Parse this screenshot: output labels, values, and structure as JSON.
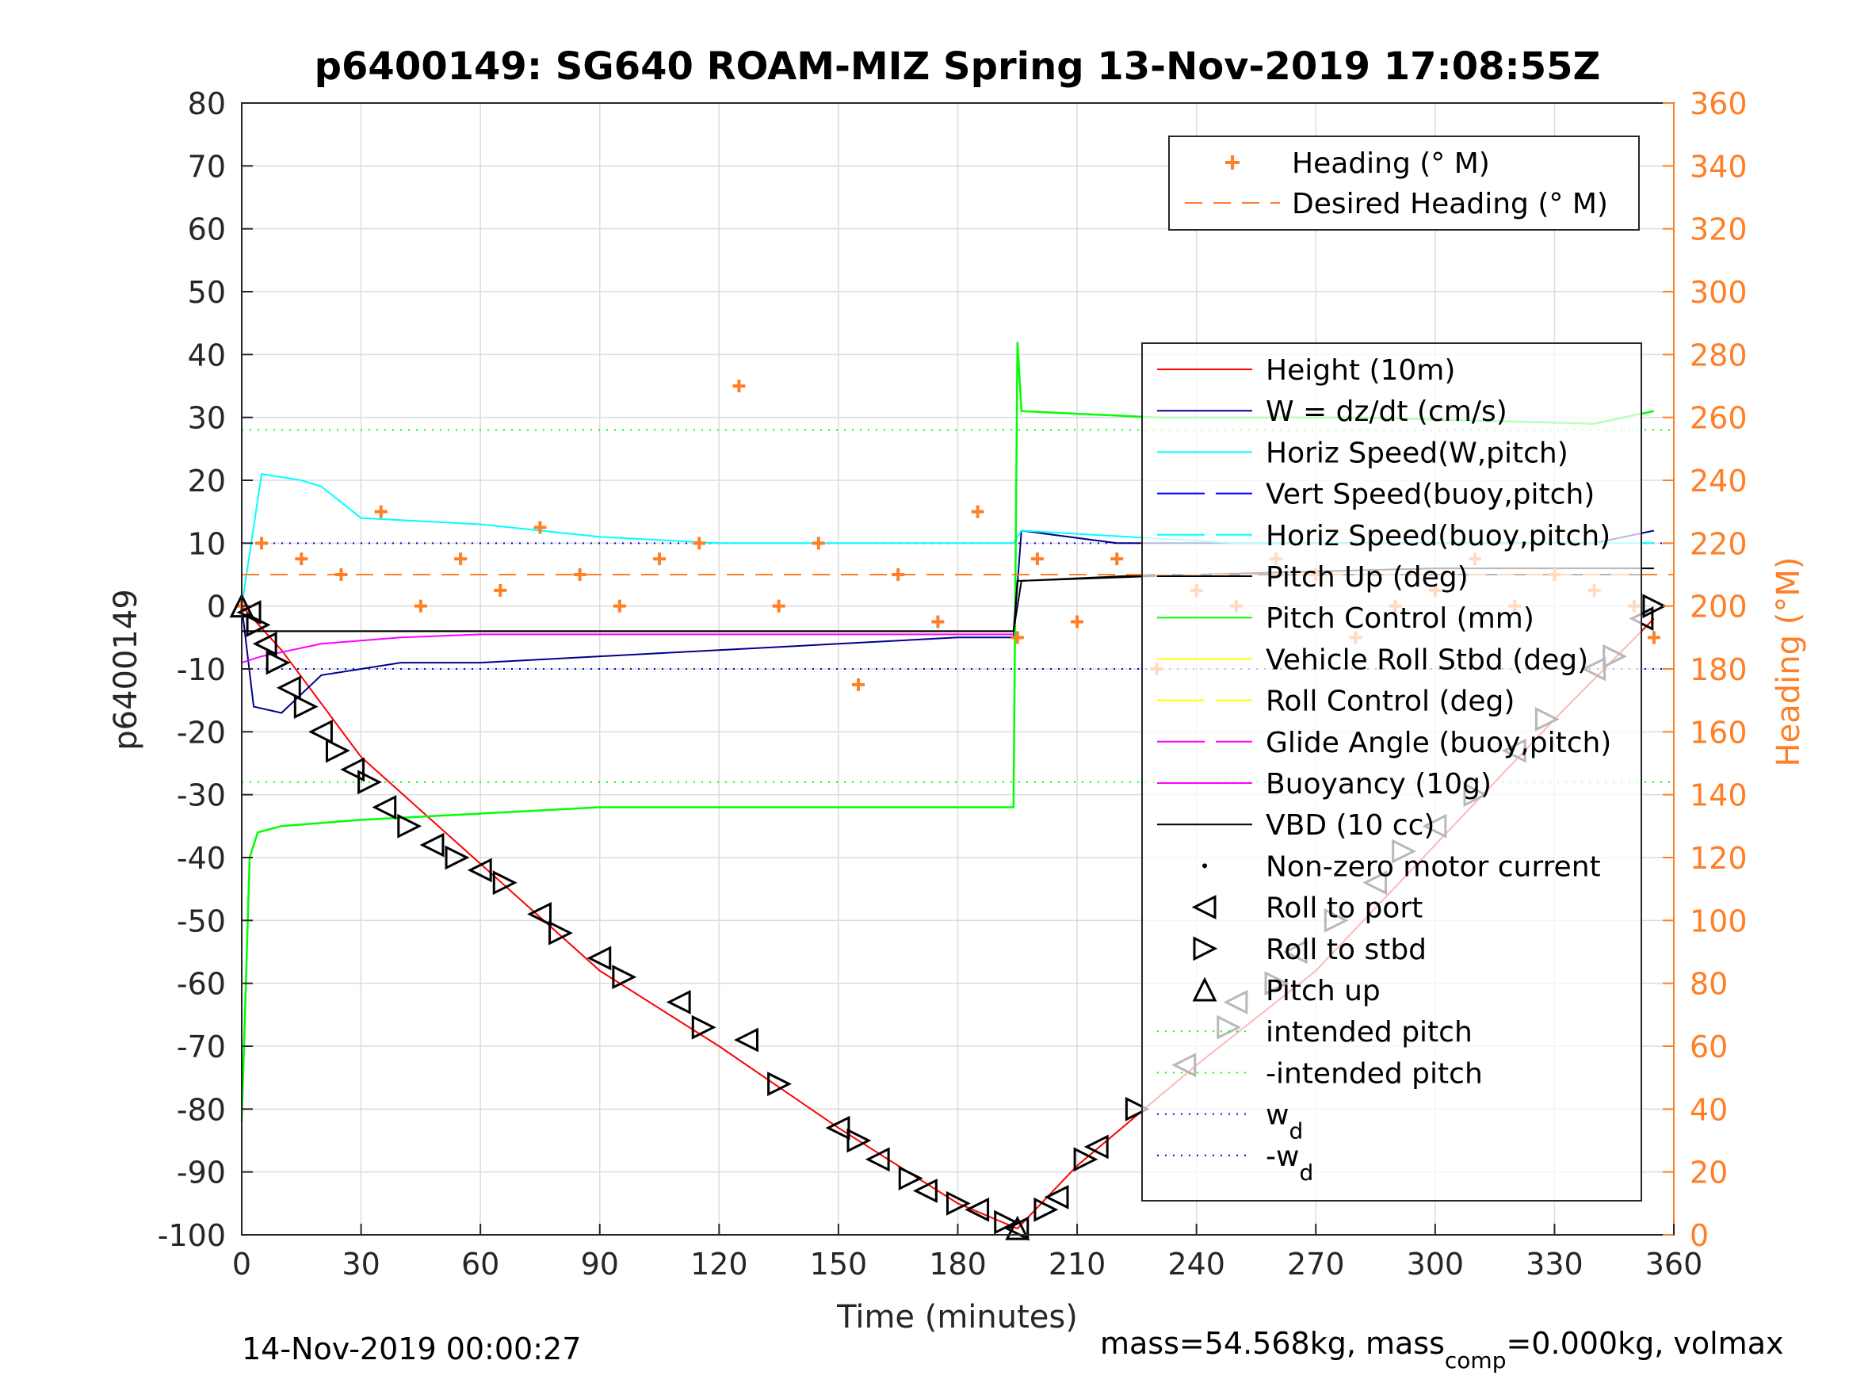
{
  "chart_data": {
    "type": "line",
    "title": "p6400149: SG640 ROAM-MIZ Spring 13-Nov-2019 17:08:55Z",
    "xlabel": "Time (minutes)",
    "ylabel": "p6400149",
    "y2label": "Heading (°M)",
    "xlim": [
      0,
      360
    ],
    "ylim": [
      -100,
      80
    ],
    "y2lim": [
      0,
      360
    ],
    "xticks": [
      0,
      30,
      60,
      90,
      120,
      150,
      180,
      210,
      240,
      270,
      300,
      330,
      360
    ],
    "yticks": [
      80,
      70,
      60,
      50,
      40,
      30,
      20,
      10,
      0,
      -10,
      -20,
      -30,
      -40,
      -50,
      -60,
      -70,
      -80,
      -90,
      -100
    ],
    "y2ticks": [
      360,
      340,
      320,
      300,
      280,
      260,
      240,
      220,
      200,
      180,
      160,
      140,
      120,
      100,
      80,
      60,
      40,
      20,
      0
    ],
    "grid": true,
    "footer_left": "14-Nov-2019 00:00:27",
    "footer_right": {
      "prefix": "mass=54.568kg, mass",
      "sub": "comp",
      "suffix": "=0.000kg, volmax"
    },
    "colors": {
      "accent": "#ff7f27",
      "height": "#ff0000",
      "w": "#00008b",
      "horiz_speed": "#00ffff",
      "vert_speed": "#0000ff",
      "pitch": "#000000",
      "pitch_control": "#00ff00",
      "roll": "#ffff00",
      "glide": "#ff00ff",
      "vbd": "#000000"
    },
    "legend_top": [
      {
        "label": "Heading (° M)",
        "style": "plus",
        "color": "#ff7f27"
      },
      {
        "label": "Desired Heading (° M)",
        "style": "dash",
        "color": "#ff7f27"
      }
    ],
    "legend_main": [
      {
        "label": "Height (10m)",
        "style": "line",
        "color": "#ff0000"
      },
      {
        "label": "W = dz/dt (cm/s)",
        "style": "line",
        "color": "#00008b"
      },
      {
        "label": "Horiz Speed(W,pitch)",
        "style": "line",
        "color": "#00ffff"
      },
      {
        "label": "Vert Speed(buoy,pitch)",
        "style": "dashline",
        "color": "#0000ff"
      },
      {
        "label": "Horiz Speed(buoy,pitch)",
        "style": "dashline",
        "color": "#00ffff"
      },
      {
        "label": "Pitch Up (deg)",
        "style": "line",
        "color": "#000000"
      },
      {
        "label": "Pitch Control (mm)",
        "style": "line",
        "color": "#00ff00"
      },
      {
        "label": "Vehicle Roll Stbd (deg)",
        "style": "line",
        "color": "#ffff00"
      },
      {
        "label": "Roll Control (deg)",
        "style": "dashline",
        "color": "#ffff00"
      },
      {
        "label": "Glide Angle (buoy,pitch)",
        "style": "dashline",
        "color": "#ff00ff"
      },
      {
        "label": "Buoyancy (10g)",
        "style": "line",
        "color": "#ff00ff"
      },
      {
        "label": "VBD (10 cc)",
        "style": "line",
        "color": "#000000"
      },
      {
        "label": "Non-zero motor current",
        "style": "dot",
        "color": "#000000"
      },
      {
        "label": "Roll to port",
        "style": "tri-left",
        "color": "#000000"
      },
      {
        "label": "Roll to stbd",
        "style": "tri-right",
        "color": "#000000"
      },
      {
        "label": "Pitch up",
        "style": "tri-up",
        "color": "#000000"
      },
      {
        "label": "intended pitch",
        "style": "dot-line",
        "color": "#00ff00"
      },
      {
        "label": "-intended pitch",
        "style": "dot-line",
        "color": "#00ff00"
      },
      {
        "label": "w",
        "sub": "d",
        "style": "dot-line",
        "color": "#0000ff"
      },
      {
        "label": "-w",
        "sub": "d",
        "style": "dot-line",
        "color": "#0000ff"
      }
    ],
    "reference_lines": [
      {
        "name": "intended pitch",
        "y": 28,
        "color": "#00ff00"
      },
      {
        "name": "-intended pitch",
        "y": -28,
        "color": "#00ff00"
      },
      {
        "name": "w_d",
        "y": 10,
        "color": "#0000ff"
      },
      {
        "name": "-w_d",
        "y": -10,
        "color": "#0000ff"
      }
    ],
    "series": [
      {
        "name": "Height (10m)",
        "x": [
          0,
          10,
          30,
          60,
          90,
          120,
          150,
          180,
          195,
          210,
          240,
          270,
          300,
          330,
          355
        ],
        "y": [
          0,
          -7,
          -24,
          -41,
          -58,
          -70,
          -83,
          -95,
          -99,
          -89,
          -73,
          -58,
          -38,
          -18,
          -2
        ]
      },
      {
        "name": "W = dz/dt (cm/s)",
        "x": [
          0,
          3,
          10,
          20,
          40,
          60,
          90,
          120,
          150,
          180,
          194,
          196,
          220,
          250,
          300,
          340,
          355
        ],
        "y": [
          0,
          -16,
          -17,
          -11,
          -9,
          -9,
          -8,
          -7,
          -6,
          -5,
          -5,
          12,
          10,
          10,
          10,
          10,
          12
        ]
      },
      {
        "name": "Horiz Speed(W,pitch)",
        "x": [
          0,
          5,
          15,
          20,
          30,
          60,
          90,
          120,
          150,
          180,
          194,
          196,
          250,
          300,
          355
        ],
        "y": [
          0,
          21,
          20,
          19,
          14,
          13,
          11,
          10,
          10,
          10,
          10,
          12,
          10,
          10,
          10
        ]
      },
      {
        "name": "Pitch Control (mm)",
        "x": [
          0,
          2,
          4,
          10,
          30,
          60,
          90,
          120,
          150,
          180,
          194,
          195,
          196,
          230,
          280,
          340,
          355
        ],
        "y": [
          -82,
          -40,
          -36,
          -35,
          -34,
          -33,
          -32,
          -32,
          -32,
          -32,
          -32,
          42,
          31,
          30,
          30,
          29,
          31
        ]
      },
      {
        "name": "Pitch Up (deg)",
        "x": [
          0,
          2,
          10,
          194,
          195,
          196,
          230,
          300,
          355
        ],
        "y": [
          -4,
          -4,
          -4,
          -4,
          4,
          4,
          5,
          5,
          5
        ]
      },
      {
        "name": "Buoyancy (10g)",
        "x": [
          0,
          5,
          20,
          40,
          60,
          100,
          150,
          194
        ],
        "y": [
          -9,
          -8,
          -6,
          -5,
          -4.5,
          -4.5,
          -4.5,
          -4.5
        ]
      },
      {
        "name": "VBD (10 cc)",
        "x": [
          0,
          100,
          194,
          196,
          240,
          300,
          355
        ],
        "y": [
          -4,
          -4,
          -4,
          4,
          5,
          6,
          6
        ]
      },
      {
        "name": "Heading (° M)",
        "axis": "y2",
        "x": [
          0,
          5,
          15,
          25,
          35,
          45,
          55,
          65,
          75,
          85,
          95,
          105,
          115,
          125,
          135,
          145,
          155,
          165,
          175,
          185,
          195,
          200,
          210,
          220,
          230,
          240,
          250,
          260,
          270,
          280,
          290,
          300,
          310,
          320,
          330,
          340,
          350,
          355
        ],
        "y": [
          200,
          220,
          215,
          210,
          230,
          200,
          215,
          205,
          225,
          210,
          200,
          215,
          220,
          270,
          200,
          220,
          175,
          210,
          195,
          230,
          190,
          215,
          195,
          215,
          180,
          205,
          200,
          215,
          210,
          190,
          200,
          205,
          215,
          200,
          210,
          205,
          200,
          190
        ]
      },
      {
        "name": "Desired Heading (° M)",
        "axis": "y2",
        "x": [
          0,
          360
        ],
        "y": [
          210,
          210
        ]
      }
    ],
    "markers": {
      "roll_to_port": {
        "x": [
          2,
          6,
          12,
          20,
          28,
          36,
          48,
          60,
          75,
          90,
          110,
          127,
          150,
          160,
          172,
          185,
          195,
          205,
          215,
          237,
          250,
          265,
          285,
          300,
          320,
          340,
          352
        ],
        "y": [
          -1,
          -6,
          -13,
          -20,
          -26,
          -32,
          -38,
          -42,
          -49,
          -56,
          -63,
          -69,
          -83,
          -88,
          -93,
          -96,
          -99,
          -94,
          -86,
          -73,
          -63,
          -55,
          -44,
          -35,
          -23,
          -10,
          -2
        ]
      },
      "roll_to_stbd": {
        "x": [
          4,
          9,
          16,
          24,
          32,
          42,
          54,
          66,
          80,
          96,
          116,
          135,
          155,
          168,
          180,
          192,
          202,
          212,
          225,
          248,
          260,
          275,
          292,
          310,
          328,
          345,
          355
        ],
        "y": [
          -3,
          -9,
          -16,
          -23,
          -28,
          -35,
          -40,
          -44,
          -52,
          -59,
          -67,
          -76,
          -85,
          -91,
          -95,
          -98,
          -96,
          -88,
          -80,
          -67,
          -60,
          -50,
          -39,
          -30,
          -18,
          -8,
          0
        ]
      },
      "pitch_up": {
        "x": [
          0,
          195
        ],
        "y": [
          0,
          -99
        ]
      }
    }
  }
}
